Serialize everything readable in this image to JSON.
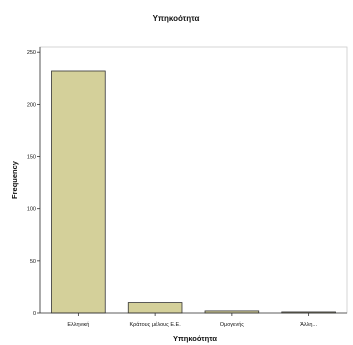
{
  "chart_data": {
    "type": "bar",
    "title": "Υπηκοότητα",
    "xlabel": "Υπηκοότητα",
    "ylabel": "Frequency",
    "categories": [
      "Ελληνική",
      "Κράτους μέλους Ε.Ε.",
      "Ομογενής",
      "Άλλη..."
    ],
    "values": [
      232,
      10,
      2,
      1
    ],
    "yticks": [
      0,
      50,
      100,
      150,
      200,
      250
    ],
    "ylim": [
      0,
      255
    ],
    "bar_color": "#d4d09a",
    "grid": false
  }
}
